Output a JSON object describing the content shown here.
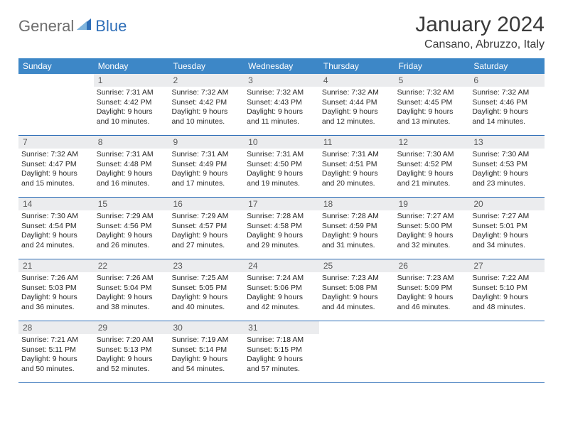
{
  "brand": {
    "text_left": "General",
    "text_right": "Blue",
    "color_gray": "#6e6e6e",
    "color_blue": "#2f6fb8"
  },
  "header": {
    "title": "January 2024",
    "location": "Cansano, Abruzzo, Italy"
  },
  "colors": {
    "header_bar": "#3d87c7",
    "daynum_bg": "#ebecee",
    "row_border": "#2f6fb8",
    "text_dark": "#282828"
  },
  "dow": [
    "Sunday",
    "Monday",
    "Tuesday",
    "Wednesday",
    "Thursday",
    "Friday",
    "Saturday"
  ],
  "weeks": [
    [
      {
        "n": "",
        "sr": "",
        "ss": "",
        "dl": ""
      },
      {
        "n": "1",
        "sr": "7:31 AM",
        "ss": "4:42 PM",
        "dl": "9 hours and 10 minutes."
      },
      {
        "n": "2",
        "sr": "7:32 AM",
        "ss": "4:42 PM",
        "dl": "9 hours and 10 minutes."
      },
      {
        "n": "3",
        "sr": "7:32 AM",
        "ss": "4:43 PM",
        "dl": "9 hours and 11 minutes."
      },
      {
        "n": "4",
        "sr": "7:32 AM",
        "ss": "4:44 PM",
        "dl": "9 hours and 12 minutes."
      },
      {
        "n": "5",
        "sr": "7:32 AM",
        "ss": "4:45 PM",
        "dl": "9 hours and 13 minutes."
      },
      {
        "n": "6",
        "sr": "7:32 AM",
        "ss": "4:46 PM",
        "dl": "9 hours and 14 minutes."
      }
    ],
    [
      {
        "n": "7",
        "sr": "7:32 AM",
        "ss": "4:47 PM",
        "dl": "9 hours and 15 minutes."
      },
      {
        "n": "8",
        "sr": "7:31 AM",
        "ss": "4:48 PM",
        "dl": "9 hours and 16 minutes."
      },
      {
        "n": "9",
        "sr": "7:31 AM",
        "ss": "4:49 PM",
        "dl": "9 hours and 17 minutes."
      },
      {
        "n": "10",
        "sr": "7:31 AM",
        "ss": "4:50 PM",
        "dl": "9 hours and 19 minutes."
      },
      {
        "n": "11",
        "sr": "7:31 AM",
        "ss": "4:51 PM",
        "dl": "9 hours and 20 minutes."
      },
      {
        "n": "12",
        "sr": "7:30 AM",
        "ss": "4:52 PM",
        "dl": "9 hours and 21 minutes."
      },
      {
        "n": "13",
        "sr": "7:30 AM",
        "ss": "4:53 PM",
        "dl": "9 hours and 23 minutes."
      }
    ],
    [
      {
        "n": "14",
        "sr": "7:30 AM",
        "ss": "4:54 PM",
        "dl": "9 hours and 24 minutes."
      },
      {
        "n": "15",
        "sr": "7:29 AM",
        "ss": "4:56 PM",
        "dl": "9 hours and 26 minutes."
      },
      {
        "n": "16",
        "sr": "7:29 AM",
        "ss": "4:57 PM",
        "dl": "9 hours and 27 minutes."
      },
      {
        "n": "17",
        "sr": "7:28 AM",
        "ss": "4:58 PM",
        "dl": "9 hours and 29 minutes."
      },
      {
        "n": "18",
        "sr": "7:28 AM",
        "ss": "4:59 PM",
        "dl": "9 hours and 31 minutes."
      },
      {
        "n": "19",
        "sr": "7:27 AM",
        "ss": "5:00 PM",
        "dl": "9 hours and 32 minutes."
      },
      {
        "n": "20",
        "sr": "7:27 AM",
        "ss": "5:01 PM",
        "dl": "9 hours and 34 minutes."
      }
    ],
    [
      {
        "n": "21",
        "sr": "7:26 AM",
        "ss": "5:03 PM",
        "dl": "9 hours and 36 minutes."
      },
      {
        "n": "22",
        "sr": "7:26 AM",
        "ss": "5:04 PM",
        "dl": "9 hours and 38 minutes."
      },
      {
        "n": "23",
        "sr": "7:25 AM",
        "ss": "5:05 PM",
        "dl": "9 hours and 40 minutes."
      },
      {
        "n": "24",
        "sr": "7:24 AM",
        "ss": "5:06 PM",
        "dl": "9 hours and 42 minutes."
      },
      {
        "n": "25",
        "sr": "7:23 AM",
        "ss": "5:08 PM",
        "dl": "9 hours and 44 minutes."
      },
      {
        "n": "26",
        "sr": "7:23 AM",
        "ss": "5:09 PM",
        "dl": "9 hours and 46 minutes."
      },
      {
        "n": "27",
        "sr": "7:22 AM",
        "ss": "5:10 PM",
        "dl": "9 hours and 48 minutes."
      }
    ],
    [
      {
        "n": "28",
        "sr": "7:21 AM",
        "ss": "5:11 PM",
        "dl": "9 hours and 50 minutes."
      },
      {
        "n": "29",
        "sr": "7:20 AM",
        "ss": "5:13 PM",
        "dl": "9 hours and 52 minutes."
      },
      {
        "n": "30",
        "sr": "7:19 AM",
        "ss": "5:14 PM",
        "dl": "9 hours and 54 minutes."
      },
      {
        "n": "31",
        "sr": "7:18 AM",
        "ss": "5:15 PM",
        "dl": "9 hours and 57 minutes."
      },
      {
        "n": "",
        "sr": "",
        "ss": "",
        "dl": ""
      },
      {
        "n": "",
        "sr": "",
        "ss": "",
        "dl": ""
      },
      {
        "n": "",
        "sr": "",
        "ss": "",
        "dl": ""
      }
    ]
  ],
  "labels": {
    "sunrise": "Sunrise:",
    "sunset": "Sunset:",
    "daylight": "Daylight:"
  }
}
